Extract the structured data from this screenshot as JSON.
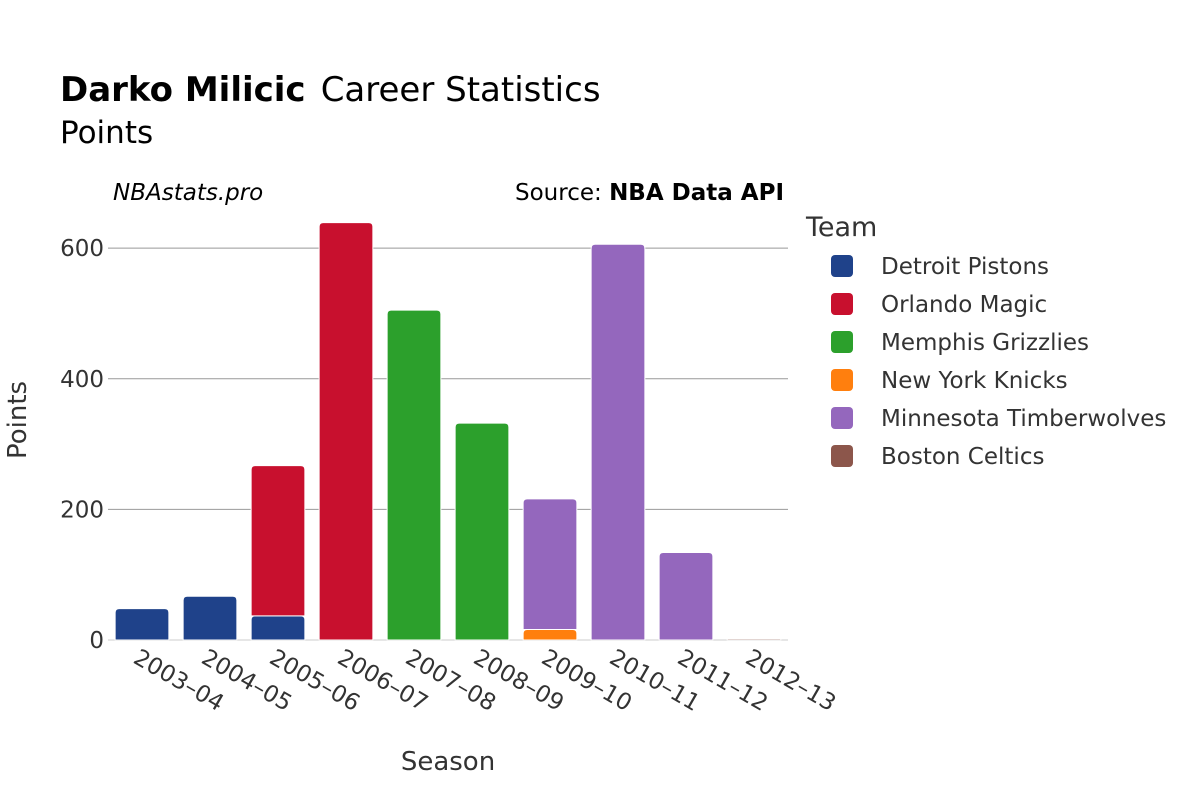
{
  "chart_data": {
    "type": "bar",
    "stacked": true,
    "title_bold": "Darko Milicic",
    "title_rest": "Career Statistics",
    "subtitle": "Points",
    "credit": "NBAstats.pro",
    "source_prefix": "Source: ",
    "source_name": "NBA Data API",
    "xlabel": "Season",
    "ylabel": "Points",
    "ylim": [
      0,
      640
    ],
    "yticks": [
      0,
      200,
      400,
      600
    ],
    "grid": true,
    "legend_title": "Team",
    "legend_position": "right",
    "categories": [
      "2003–04",
      "2004–05",
      "2005–06",
      "2006–07",
      "2007–08",
      "2008–09",
      "2009–10",
      "2010–11",
      "2011–12",
      "2012–13"
    ],
    "series": [
      {
        "name": "Detroit Pistons",
        "color": "#1f428a",
        "values": [
          48,
          67,
          37,
          0,
          0,
          0,
          0,
          0,
          0,
          0
        ]
      },
      {
        "name": "Orlando Magic",
        "color": "#c8102e",
        "values": [
          0,
          0,
          230,
          639,
          0,
          0,
          0,
          0,
          0,
          0
        ]
      },
      {
        "name": "Memphis Grizzlies",
        "color": "#2ca02c",
        "values": [
          0,
          0,
          0,
          0,
          505,
          332,
          0,
          0,
          0,
          0
        ]
      },
      {
        "name": "New York Knicks",
        "color": "#ff7f0e",
        "values": [
          0,
          0,
          0,
          0,
          0,
          0,
          16,
          0,
          0,
          0
        ]
      },
      {
        "name": "Minnesota Timberwolves",
        "color": "#9467bd",
        "values": [
          0,
          0,
          0,
          0,
          0,
          0,
          200,
          606,
          134,
          0
        ]
      },
      {
        "name": "Boston Celtics",
        "color": "#8c564b",
        "values": [
          0,
          0,
          0,
          0,
          0,
          0,
          0,
          0,
          0,
          2
        ]
      }
    ]
  }
}
